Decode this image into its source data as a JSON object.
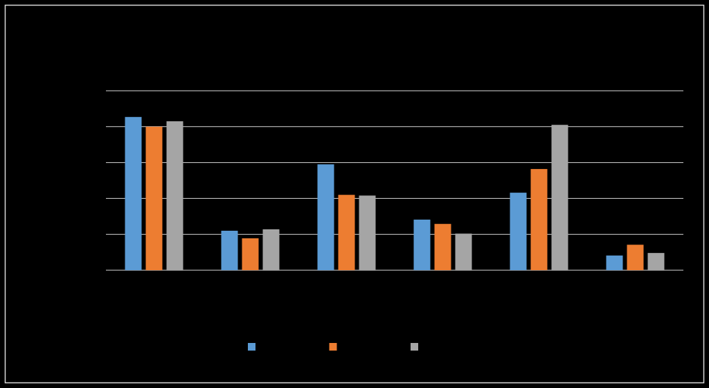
{
  "chart_data": {
    "type": "bar",
    "categories": [
      null,
      null,
      null,
      null,
      null,
      null
    ],
    "series": [
      {
        "color": "#5b9bd5",
        "values": [
          4.27,
          1.1,
          2.95,
          1.41,
          2.16,
          0.41
        ]
      },
      {
        "color": "#ed7d31",
        "values": [
          4.0,
          0.89,
          2.1,
          1.29,
          2.82,
          0.71
        ]
      },
      {
        "color": "#a5a5a5",
        "values": [
          4.15,
          1.14,
          2.08,
          1.02,
          4.05,
          0.48
        ]
      }
    ],
    "ylim": [
      0,
      5
    ],
    "yticks": [
      0,
      1,
      2,
      3,
      4,
      5
    ],
    "grid": true
  }
}
